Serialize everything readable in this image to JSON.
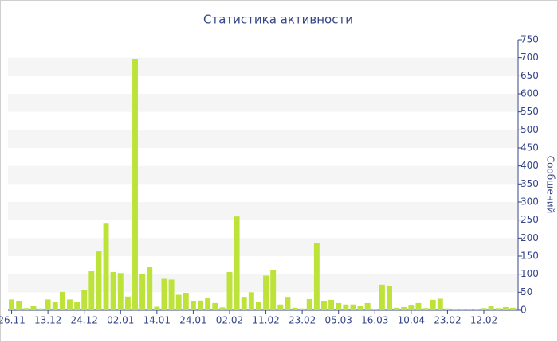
{
  "chart_data": {
    "type": "bar",
    "title": "Статистика активности",
    "y_axis_label": "Сообщений",
    "categories": [
      "26.11",
      null,
      null,
      null,
      null,
      "13.12",
      null,
      null,
      null,
      null,
      "24.12",
      null,
      null,
      null,
      null,
      "02.01",
      null,
      null,
      null,
      null,
      "14.01",
      null,
      null,
      null,
      null,
      "24.01",
      null,
      null,
      null,
      null,
      "02.02",
      null,
      null,
      null,
      null,
      "11.02",
      null,
      null,
      null,
      null,
      "23.02",
      null,
      null,
      null,
      null,
      "05.03",
      null,
      null,
      null,
      null,
      "16.03",
      null,
      null,
      null,
      null,
      "10.04",
      null,
      null,
      null,
      null,
      "23.02",
      null,
      null,
      null,
      null,
      "12.02",
      null,
      null,
      null,
      null
    ],
    "values": [
      30,
      26,
      6,
      11,
      5,
      30,
      22,
      51,
      30,
      22,
      57,
      108,
      163,
      240,
      106,
      103,
      38,
      697,
      101,
      119,
      10,
      87,
      85,
      43,
      47,
      26,
      27,
      33,
      20,
      8,
      106,
      260,
      35,
      50,
      22,
      96,
      111,
      16,
      35,
      7,
      5,
      31,
      187,
      26,
      29,
      20,
      16,
      16,
      11,
      20,
      2,
      71,
      68,
      7,
      9,
      13,
      20,
      6,
      29,
      32,
      5,
      4,
      3,
      3,
      4,
      6,
      11,
      6,
      9,
      7
    ],
    "color": "#bde23a",
    "ylim": [
      0,
      750
    ],
    "yticks": [
      0,
      50,
      100,
      150,
      200,
      250,
      300,
      350,
      400,
      450,
      500,
      550,
      600,
      650,
      700,
      750
    ],
    "grid": true
  }
}
